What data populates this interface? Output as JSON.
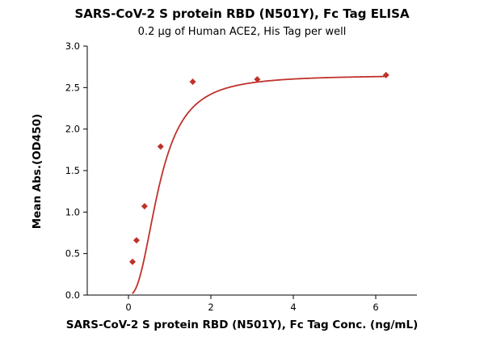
{
  "chart_data": {
    "type": "scatter",
    "title": "SARS-CoV-2 S protein RBD (N501Y), Fc Tag ELISA",
    "subtitle": "0.2 μg of Human ACE2, His Tag per well",
    "xlabel": "SARS-CoV-2 S protein RBD (N501Y), Fc Tag Conc. (ng/mL)",
    "ylabel": "Mean Abs.(OD450)",
    "xlim": [
      -1,
      7
    ],
    "ylim": [
      0,
      3.0
    ],
    "xticks": [
      0,
      2,
      4,
      6
    ],
    "yticks": [
      0.0,
      0.5,
      1.0,
      1.5,
      2.0,
      2.5,
      3.0
    ],
    "xtick_labels": [
      "0",
      "2",
      "4",
      "6"
    ],
    "ytick_labels": [
      "0.0",
      "0.5",
      "1.0",
      "1.5",
      "2.0",
      "2.5",
      "3.0"
    ],
    "grid": false,
    "series": [
      {
        "x": [
          0.098,
          0.195,
          0.39,
          0.78,
          1.56,
          3.125,
          6.25
        ],
        "y": [
          0.4,
          0.66,
          1.07,
          1.79,
          2.57,
          2.6,
          2.65
        ],
        "fit": "4PL",
        "color": "#c0312b"
      }
    ]
  }
}
